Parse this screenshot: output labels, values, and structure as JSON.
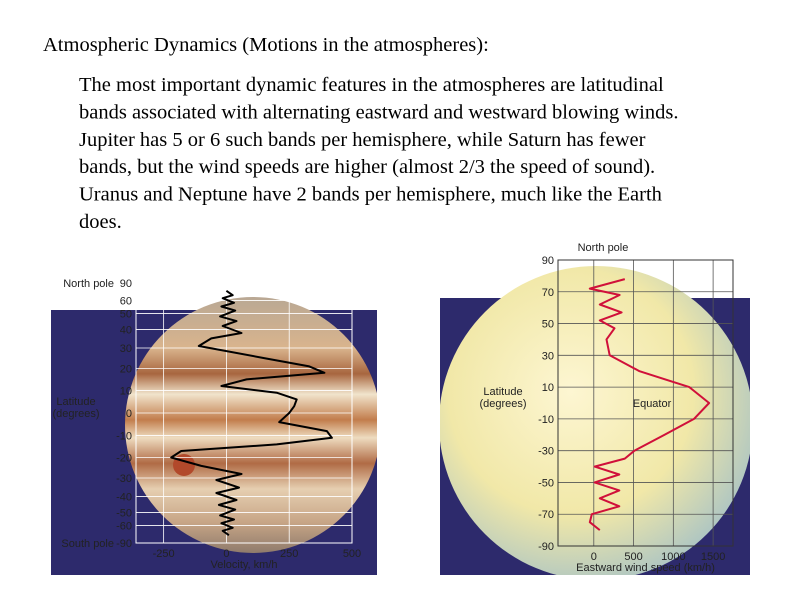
{
  "header": {
    "title": "Atmospheric Dynamics  (Motions in the atmospheres):"
  },
  "body": {
    "lines": [
      "The most important dynamic features in the atmospheres are latitudinal",
      "bands associated with alternating eastward and westward blowing winds.",
      "Jupiter has 5 or 6 such bands per hemisphere, while Saturn has fewer",
      "bands, but the wind speeds are higher (almost 2/3 the speed of sound).",
      "Uranus and Neptune have 2 bands per hemisphere, much like the Earth",
      "does."
    ]
  },
  "chart_data": [
    {
      "type": "line",
      "orientation": "horizontal",
      "yscale": "sine",
      "grid": true,
      "xlabel": "Velocity, km/h",
      "ylabel": [
        "Latitude",
        "(degrees)"
      ],
      "top_label": "North pole",
      "bottom_label": "South pole",
      "xlim": [
        -360,
        500
      ],
      "xticks": [
        -250,
        0,
        250,
        500
      ],
      "ylim": [
        -90,
        90
      ],
      "yticks": [
        90,
        60,
        50,
        40,
        30,
        20,
        10,
        0,
        -10,
        -20,
        -30,
        -40,
        -50,
        -60,
        -90
      ],
      "y": [
        70,
        65,
        62,
        58,
        55,
        52,
        48,
        45,
        42,
        38,
        35,
        31,
        25,
        21,
        18,
        15,
        12,
        9,
        6,
        3,
        0,
        -4,
        -8,
        -11,
        -14,
        -17,
        -20,
        -24,
        -28,
        -31,
        -35,
        -38,
        -42,
        -45,
        -48,
        -52,
        -55,
        -58,
        -62,
        -65,
        -70
      ],
      "series": [
        {
          "color": "#000000",
          "values": [
            0,
            25,
            -15,
            30,
            -20,
            35,
            -25,
            40,
            -15,
            60,
            -60,
            -110,
            150,
            330,
            390,
            80,
            -20,
            200,
            280,
            270,
            250,
            210,
            400,
            420,
            200,
            -180,
            -220,
            -100,
            60,
            -40,
            50,
            -40,
            40,
            -30,
            35,
            -25,
            30,
            -20,
            25,
            -15,
            10
          ]
        }
      ]
    },
    {
      "type": "line",
      "orientation": "horizontal",
      "yscale": "linear",
      "grid": true,
      "xlabel": "Eastward wind speed (km/h)",
      "ylabel": [
        "Latitude",
        "(degrees)"
      ],
      "top_label": "North pole",
      "annotation": "Equator",
      "xlim": [
        -450,
        1750
      ],
      "xticks": [
        0,
        500,
        1000,
        1500
      ],
      "ylim": [
        -90,
        90
      ],
      "yticks": [
        90,
        70,
        50,
        30,
        10,
        -10,
        -30,
        -50,
        -70,
        -90
      ],
      "y": [
        78,
        72,
        68,
        62,
        57,
        52,
        47,
        40,
        30,
        20,
        10,
        0,
        -10,
        -20,
        -30,
        -35,
        -40,
        -45,
        -50,
        -55,
        -60,
        -65,
        -70,
        -75,
        -80
      ],
      "series": [
        {
          "color": "#d0103a",
          "values": [
            390,
            -50,
            325,
            75,
            350,
            75,
            260,
            160,
            200,
            575,
            1200,
            1450,
            1260,
            890,
            510,
            390,
            10,
            320,
            10,
            320,
            75,
            320,
            -25,
            -50,
            75
          ]
        }
      ]
    }
  ]
}
